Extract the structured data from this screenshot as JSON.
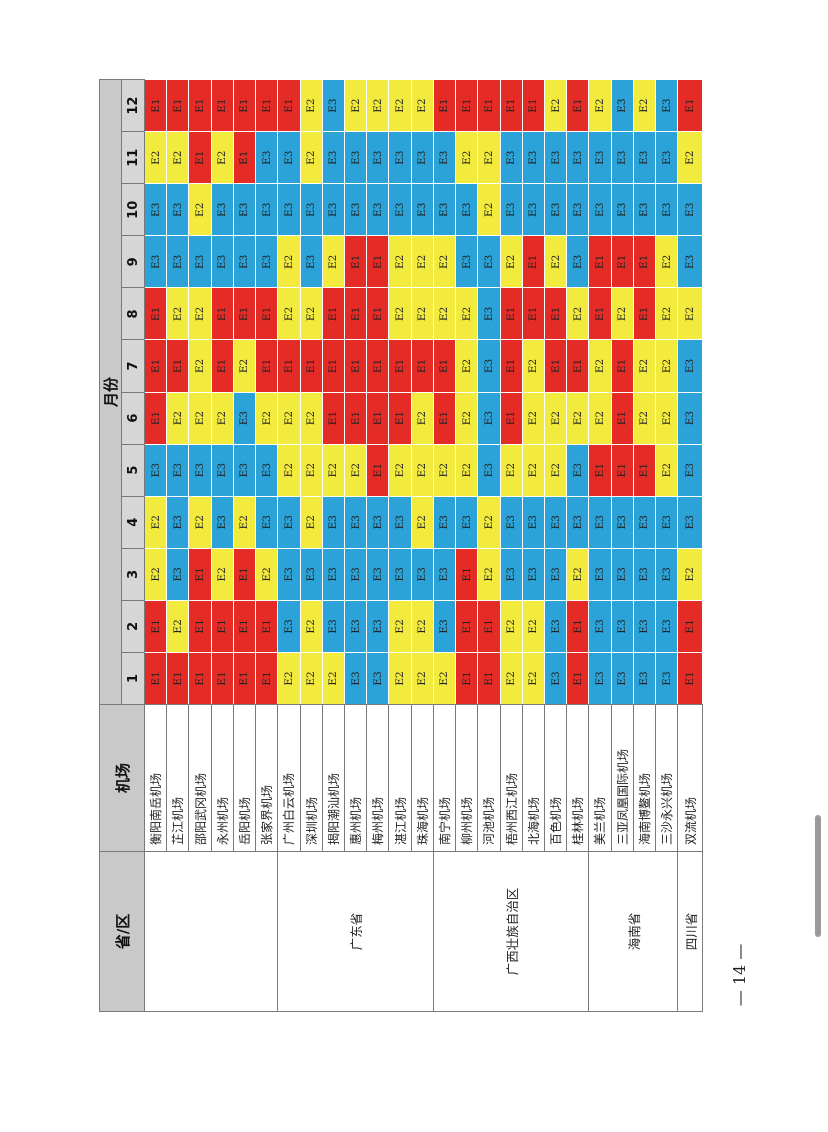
{
  "header": {
    "province": "省/区",
    "airport": "机场",
    "months_label": "月份"
  },
  "months": [
    "1",
    "2",
    "3",
    "4",
    "5",
    "6",
    "7",
    "8",
    "9",
    "10",
    "11",
    "12"
  ],
  "colors": {
    "E1": "#e52b25",
    "E2": "#f2ea3c",
    "E3": "#2ba3d8"
  },
  "groups": [
    {
      "province": "",
      "rows": [
        {
          "airport": "衡阳南岳机场",
          "codes": [
            "E1",
            "E1",
            "E2",
            "E2",
            "E3",
            "E1",
            "E1",
            "E1",
            "E3",
            "E3",
            "E2",
            "E1"
          ]
        },
        {
          "airport": "芷江机场",
          "codes": [
            "E1",
            "E2",
            "E3",
            "E3",
            "E3",
            "E2",
            "E1",
            "E2",
            "E3",
            "E3",
            "E2",
            "E1"
          ]
        },
        {
          "airport": "邵阳武冈机场",
          "codes": [
            "E1",
            "E1",
            "E1",
            "E2",
            "E3",
            "E2",
            "E2",
            "E2",
            "E3",
            "E2",
            "E1",
            "E1"
          ]
        },
        {
          "airport": "永州机场",
          "codes": [
            "E1",
            "E1",
            "E2",
            "E3",
            "E3",
            "E2",
            "E1",
            "E1",
            "E3",
            "E3",
            "E2",
            "E1"
          ]
        },
        {
          "airport": "岳阳机场",
          "codes": [
            "E1",
            "E1",
            "E1",
            "E2",
            "E3",
            "E3",
            "E2",
            "E1",
            "E3",
            "E3",
            "E1",
            "E1"
          ]
        },
        {
          "airport": "张家界机场",
          "codes": [
            "E1",
            "E1",
            "E2",
            "E3",
            "E3",
            "E2",
            "E1",
            "E1",
            "E3",
            "E3",
            "E3",
            "E1"
          ]
        }
      ]
    },
    {
      "province": "广东省",
      "rows": [
        {
          "airport": "广州白云机场",
          "codes": [
            "E2",
            "E3",
            "E3",
            "E3",
            "E2",
            "E2",
            "E1",
            "E2",
            "E2",
            "E3",
            "E3",
            "E1"
          ]
        },
        {
          "airport": "深圳机场",
          "codes": [
            "E2",
            "E2",
            "E3",
            "E2",
            "E2",
            "E2",
            "E1",
            "E2",
            "E3",
            "E3",
            "E2",
            "E2"
          ]
        },
        {
          "airport": "揭阳潮汕机场",
          "codes": [
            "E2",
            "E3",
            "E3",
            "E3",
            "E2",
            "E1",
            "E1",
            "E1",
            "E2",
            "E3",
            "E3",
            "E3"
          ]
        },
        {
          "airport": "惠州机场",
          "codes": [
            "E3",
            "E3",
            "E3",
            "E3",
            "E2",
            "E1",
            "E1",
            "E1",
            "E1",
            "E3",
            "E3",
            "E2"
          ]
        },
        {
          "airport": "梅州机场",
          "codes": [
            "E3",
            "E3",
            "E3",
            "E3",
            "E1",
            "E1",
            "E1",
            "E1",
            "E1",
            "E3",
            "E3",
            "E2"
          ]
        },
        {
          "airport": "湛江机场",
          "codes": [
            "E2",
            "E2",
            "E3",
            "E3",
            "E2",
            "E1",
            "E1",
            "E2",
            "E2",
            "E3",
            "E3",
            "E2"
          ]
        },
        {
          "airport": "珠海机场",
          "codes": [
            "E2",
            "E2",
            "E3",
            "E2",
            "E2",
            "E2",
            "E1",
            "E2",
            "E2",
            "E3",
            "E3",
            "E2"
          ]
        }
      ]
    },
    {
      "province": "广西壮族自治区",
      "rows": [
        {
          "airport": "南宁机场",
          "codes": [
            "E2",
            "E3",
            "E3",
            "E3",
            "E2",
            "E1",
            "E1",
            "E2",
            "E2",
            "E3",
            "E3",
            "E1"
          ]
        },
        {
          "airport": "柳州机场",
          "codes": [
            "E1",
            "E1",
            "E1",
            "E3",
            "E2",
            "E2",
            "E2",
            "E2",
            "E3",
            "E3",
            "E2",
            "E1"
          ]
        },
        {
          "airport": "河池机场",
          "codes": [
            "E1",
            "E1",
            "E2",
            "E2",
            "E3",
            "E3",
            "E3",
            "E3",
            "E3",
            "E2",
            "E2",
            "E1"
          ]
        },
        {
          "airport": "梧州西江机场",
          "codes": [
            "E2",
            "E2",
            "E3",
            "E3",
            "E2",
            "E1",
            "E1",
            "E1",
            "E2",
            "E3",
            "E3",
            "E1"
          ]
        },
        {
          "airport": "北海机场",
          "codes": [
            "E2",
            "E2",
            "E3",
            "E3",
            "E2",
            "E2",
            "E2",
            "E1",
            "E1",
            "E3",
            "E3",
            "E1"
          ]
        },
        {
          "airport": "百色机场",
          "codes": [
            "E3",
            "E3",
            "E3",
            "E3",
            "E2",
            "E2",
            "E1",
            "E1",
            "E2",
            "E3",
            "E3",
            "E2"
          ]
        },
        {
          "airport": "桂林机场",
          "codes": [
            "E1",
            "E1",
            "E2",
            "E3",
            "E3",
            "E2",
            "E1",
            "E2",
            "E3",
            "E3",
            "E3",
            "E1"
          ]
        }
      ]
    },
    {
      "province": "海南省",
      "rows": [
        {
          "airport": "美兰机场",
          "codes": [
            "E3",
            "E3",
            "E3",
            "E3",
            "E1",
            "E2",
            "E2",
            "E1",
            "E1",
            "E3",
            "E3",
            "E2"
          ]
        },
        {
          "airport": "三亚凤凰国际机场",
          "codes": [
            "E3",
            "E3",
            "E3",
            "E3",
            "E1",
            "E1",
            "E1",
            "E2",
            "E1",
            "E3",
            "E3",
            "E3"
          ]
        },
        {
          "airport": "海南博鳌机场",
          "codes": [
            "E3",
            "E3",
            "E3",
            "E3",
            "E1",
            "E2",
            "E2",
            "E1",
            "E1",
            "E3",
            "E3",
            "E2"
          ]
        },
        {
          "airport": "三沙永兴机场",
          "codes": [
            "E3",
            "E3",
            "E3",
            "E3",
            "E2",
            "E2",
            "E2",
            "E2",
            "E2",
            "E3",
            "E3",
            "E3"
          ]
        }
      ]
    },
    {
      "province": "四川省",
      "rows": [
        {
          "airport": "双流机场",
          "codes": [
            "E1",
            "E1",
            "E2",
            "E3",
            "E3",
            "E3",
            "E3",
            "E2",
            "E3",
            "E3",
            "E2",
            "E1"
          ]
        }
      ]
    }
  ],
  "page_number": "— 14 —"
}
